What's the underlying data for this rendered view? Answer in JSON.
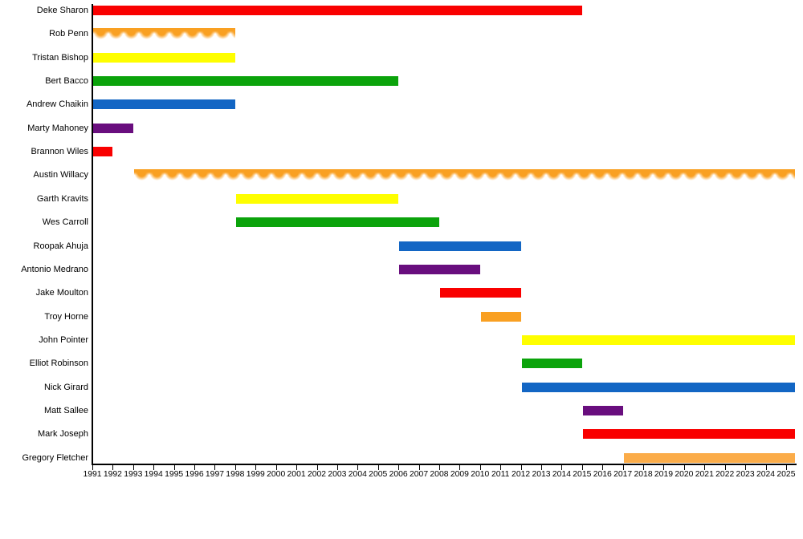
{
  "chart_data": {
    "type": "timeline",
    "title": "",
    "legend": false,
    "grid": false,
    "x_axis": {
      "first_year": 1991,
      "last_year": 2025,
      "tick_step": 1,
      "domain_start": 1991,
      "domain_end": 2025.45
    },
    "present_value": 2025.45,
    "colors": {
      "red": "#F90000",
      "orange": "#F9A022",
      "light_orange": "#FBAC49",
      "yellow": "#FEFE00",
      "green": "#0BA30B",
      "blue": "#1366C4",
      "purple": "#690E7E",
      "axis": "#000000"
    },
    "members": [
      {
        "name": "Deke Sharon",
        "start": 1991,
        "end": 2015,
        "color": "red",
        "style": "solid"
      },
      {
        "name": "Rob Penn",
        "start": 1991,
        "end": 1998,
        "color": "orange",
        "style": "faded-bottom"
      },
      {
        "name": "Tristan Bishop",
        "start": 1991,
        "end": 1998,
        "color": "yellow",
        "style": "solid"
      },
      {
        "name": "Bert Bacco",
        "start": 1991,
        "end": 2006,
        "color": "green",
        "style": "solid"
      },
      {
        "name": "Andrew Chaikin",
        "start": 1991,
        "end": 1998,
        "color": "blue",
        "style": "solid"
      },
      {
        "name": "Marty Mahoney",
        "start": 1991,
        "end": 1993,
        "color": "purple",
        "style": "solid"
      },
      {
        "name": "Brannon Wiles",
        "start": 1991,
        "end": 1992,
        "color": "red",
        "style": "solid"
      },
      {
        "name": "Austin Willacy",
        "start": 1993,
        "end": "present",
        "color": "orange",
        "style": "faded-bottom"
      },
      {
        "name": "Garth Kravits",
        "start": 1998,
        "end": 2006,
        "color": "yellow",
        "style": "solid"
      },
      {
        "name": "Wes Carroll",
        "start": 1998,
        "end": 2008,
        "color": "green",
        "style": "solid"
      },
      {
        "name": "Roopak Ahuja",
        "start": 2006,
        "end": 2012,
        "color": "blue",
        "style": "solid"
      },
      {
        "name": "Antonio Medrano",
        "start": 2006,
        "end": 2010,
        "color": "purple",
        "style": "solid"
      },
      {
        "name": "Jake Moulton",
        "start": 2008,
        "end": 2012,
        "color": "red",
        "style": "solid"
      },
      {
        "name": "Troy Horne",
        "start": 2010,
        "end": 2012,
        "color": "orange",
        "style": "solid"
      },
      {
        "name": "John Pointer",
        "start": 2012,
        "end": "present",
        "color": "yellow",
        "style": "solid"
      },
      {
        "name": "Elliot Robinson",
        "start": 2012,
        "end": 2015,
        "color": "green",
        "style": "solid"
      },
      {
        "name": "Nick Girard",
        "start": 2012,
        "end": "present",
        "color": "blue",
        "style": "solid"
      },
      {
        "name": "Matt Sallee",
        "start": 2015,
        "end": 2017,
        "color": "purple",
        "style": "solid"
      },
      {
        "name": "Mark Joseph",
        "start": 2015,
        "end": "present",
        "color": "red",
        "style": "solid"
      },
      {
        "name": "Gregory Fletcher",
        "start": 2017,
        "end": "present",
        "color": "light_orange",
        "style": "solid"
      }
    ]
  }
}
